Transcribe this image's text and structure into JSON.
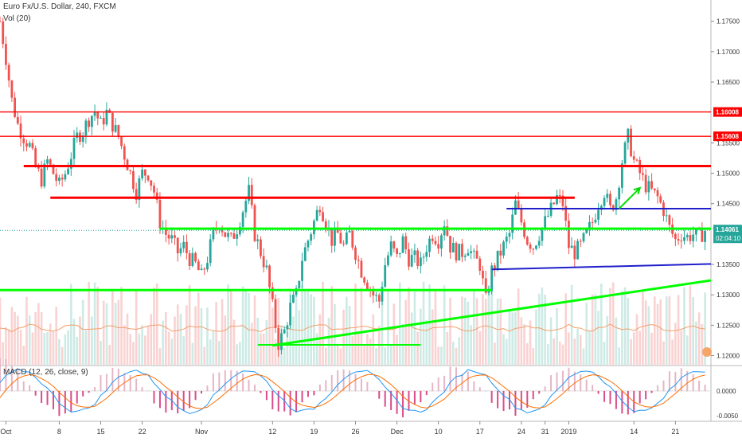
{
  "chart_data": {
    "type": "candlestick",
    "symbol_title": "Euro Fx/U.S. Dollar, 240, FXCM",
    "volume_label": "Vol (20)",
    "macd_label": "MACD (12, 26, close, 9)",
    "price_axis": {
      "range": [
        1.1185,
        1.1785
      ],
      "ticks": [
        "1.17500",
        "1.17000",
        "1.16500",
        "1.15500",
        "1.15000",
        "1.14500",
        "1.13500",
        "1.13000",
        "1.12500",
        "1.12000"
      ]
    },
    "macd_axis": {
      "range": [
        -0.006,
        0.005
      ],
      "ticks": [
        "0.0000",
        "-0.0050"
      ]
    },
    "x_axis": {
      "range": [
        0,
        120
      ],
      "ticks": [
        {
          "label": "Oct",
          "x": 1
        },
        {
          "label": "8",
          "x": 10
        },
        {
          "label": "15",
          "x": 17
        },
        {
          "label": "22",
          "x": 24
        },
        {
          "label": "Nov",
          "x": 34
        },
        {
          "label": "12",
          "x": 46
        },
        {
          "label": "19",
          "x": 53
        },
        {
          "label": "26",
          "x": 60
        },
        {
          "label": "Dec",
          "x": 67
        },
        {
          "label": "10",
          "x": 74
        },
        {
          "label": "17",
          "x": 81
        },
        {
          "label": "24",
          "x": 88
        },
        {
          "label": "31",
          "x": 92
        },
        {
          "label": "2019",
          "x": 96
        },
        {
          "label": "14",
          "x": 107
        },
        {
          "label": "21",
          "x": 114
        }
      ]
    },
    "price_tags": [
      {
        "price": 1.16008,
        "label": "1.16008",
        "color": "#ff0000"
      },
      {
        "price": 1.15608,
        "label": "1.15608",
        "color": "#ff0000"
      }
    ],
    "last_price": {
      "price": 1.14061,
      "label": "1.14061",
      "countdown": "02:04:10",
      "color": "#26a69a"
    },
    "colors": {
      "bull": "#26a69a",
      "bear": "#ef5350",
      "vol_bull": "#cdeae5",
      "vol_bear": "#f9d2d2",
      "macd_line": "#2196f3",
      "signal_line": "#ff6d00",
      "res_red": "#ff0000",
      "sup_green": "#00ff00",
      "trend_blue": "#1f1fcc"
    },
    "drawn_lines": [
      {
        "from": [
          0,
          1.16008
        ],
        "to": [
          120,
          1.16008
        ],
        "color": "#ff0000",
        "width": 1.4
      },
      {
        "from": [
          0,
          1.15608
        ],
        "to": [
          120,
          1.15608
        ],
        "color": "#ff0000",
        "width": 1.4
      },
      {
        "from": [
          4,
          1.15118
        ],
        "to": [
          120,
          1.15118
        ],
        "color": "#ff0000",
        "width": 3
      },
      {
        "from": [
          8.5,
          1.14598
        ],
        "to": [
          97,
          1.14598
        ],
        "color": "#ff0000",
        "width": 3
      },
      {
        "from": [
          27,
          1.14088
        ],
        "to": [
          120,
          1.14088
        ],
        "color": "#00ff00",
        "width": 3
      },
      {
        "from": [
          0,
          1.13078
        ],
        "to": [
          83,
          1.13078
        ],
        "color": "#00ff00",
        "width": 3
      },
      {
        "from": [
          43.5,
          1.12178
        ],
        "to": [
          71,
          1.12178
        ],
        "color": "#00ff00",
        "width": 2
      },
      {
        "from": [
          46,
          1.12168
        ],
        "to": [
          120,
          1.13238
        ],
        "color": "#00ff00",
        "width": 3
      },
      {
        "from": [
          85.5,
          1.14418
        ],
        "to": [
          120,
          1.14418
        ],
        "color": "#1f1fcc",
        "width": 2
      },
      {
        "from": [
          83,
          1.13418
        ],
        "to": [
          120,
          1.13508
        ],
        "color": "#1f1fcc",
        "width": 2
      }
    ],
    "arrow": {
      "from": [
        104.5,
        1.14418
      ],
      "to": [
        108,
        1.14758
      ],
      "color": "#00dd00"
    },
    "close_path": [
      [
        0,
        1.175
      ],
      [
        1,
        1.169
      ],
      [
        2,
        1.162
      ],
      [
        3,
        1.158
      ],
      [
        4,
        1.156
      ],
      [
        5,
        1.1545
      ],
      [
        6,
        1.151
      ],
      [
        7,
        1.149
      ],
      [
        8,
        1.152
      ],
      [
        9,
        1.15
      ],
      [
        10,
        1.148
      ],
      [
        11,
        1.15
      ],
      [
        12,
        1.153
      ],
      [
        13,
        1.156
      ],
      [
        14,
        1.157
      ],
      [
        15,
        1.159
      ],
      [
        16,
        1.1602
      ],
      [
        17,
        1.158
      ],
      [
        18,
        1.16
      ],
      [
        19,
        1.158
      ],
      [
        20,
        1.156
      ],
      [
        21,
        1.153
      ],
      [
        22,
        1.15
      ],
      [
        23,
        1.147
      ],
      [
        24,
        1.15
      ],
      [
        25,
        1.15
      ],
      [
        26,
        1.147
      ],
      [
        27,
        1.142
      ],
      [
        28,
        1.14
      ],
      [
        29,
        1.139
      ],
      [
        30,
        1.137
      ],
      [
        31,
        1.138
      ],
      [
        32,
        1.136
      ],
      [
        33,
        1.135
      ],
      [
        34,
        1.133
      ],
      [
        35,
        1.136
      ],
      [
        36,
        1.14
      ],
      [
        37,
        1.142
      ],
      [
        38,
        1.14
      ],
      [
        39,
        1.139
      ],
      [
        40,
        1.141
      ],
      [
        41,
        1.144
      ],
      [
        42,
        1.147
      ],
      [
        43,
        1.14
      ],
      [
        44,
        1.137
      ],
      [
        45,
        1.134
      ],
      [
        46,
        1.128
      ],
      [
        47,
        1.122
      ],
      [
        48,
        1.124
      ],
      [
        49,
        1.128
      ],
      [
        50,
        1.13
      ],
      [
        51,
        1.136
      ],
      [
        52,
        1.139
      ],
      [
        53,
        1.142
      ],
      [
        54,
        1.145
      ],
      [
        55,
        1.142
      ],
      [
        56,
        1.139
      ],
      [
        57,
        1.14
      ],
      [
        58,
        1.138
      ],
      [
        59,
        1.14
      ],
      [
        60,
        1.137
      ],
      [
        61,
        1.134
      ],
      [
        62,
        1.132
      ],
      [
        63,
        1.13
      ],
      [
        64,
        1.129
      ],
      [
        65,
        1.135
      ],
      [
        66,
        1.138
      ],
      [
        67,
        1.136
      ],
      [
        68,
        1.139
      ],
      [
        69,
        1.136
      ],
      [
        70,
        1.136
      ],
      [
        71,
        1.135
      ],
      [
        72,
        1.138
      ],
      [
        73,
        1.14
      ],
      [
        74,
        1.139
      ],
      [
        75,
        1.142
      ],
      [
        76,
        1.138
      ],
      [
        77,
        1.137
      ],
      [
        78,
        1.137
      ],
      [
        79,
        1.138
      ],
      [
        80,
        1.136
      ],
      [
        81,
        1.135
      ],
      [
        82,
        1.129
      ],
      [
        83,
        1.134
      ],
      [
        84,
        1.136
      ],
      [
        85,
        1.138
      ],
      [
        86,
        1.14
      ],
      [
        87,
        1.145
      ],
      [
        88,
        1.142
      ],
      [
        89,
        1.139
      ],
      [
        90,
        1.138
      ],
      [
        91,
        1.14
      ],
      [
        92,
        1.142
      ],
      [
        93,
        1.144
      ],
      [
        94,
        1.146
      ],
      [
        95,
        1.145
      ],
      [
        96,
        1.138
      ],
      [
        97,
        1.137
      ],
      [
        98,
        1.138
      ],
      [
        99,
        1.14
      ],
      [
        100,
        1.142
      ],
      [
        101,
        1.145
      ],
      [
        102,
        1.147
      ],
      [
        103,
        1.144
      ],
      [
        104,
        1.146
      ],
      [
        105,
        1.152
      ],
      [
        106,
        1.156
      ],
      [
        107,
        1.152
      ],
      [
        108,
        1.15
      ],
      [
        109,
        1.148
      ],
      [
        110,
        1.147
      ],
      [
        111,
        1.146
      ],
      [
        112,
        1.144
      ],
      [
        113,
        1.141
      ],
      [
        114,
        1.139
      ],
      [
        115,
        1.14
      ],
      [
        116,
        1.1395
      ],
      [
        117,
        1.14
      ],
      [
        118,
        1.1395
      ],
      [
        119,
        1.14061
      ]
    ]
  }
}
